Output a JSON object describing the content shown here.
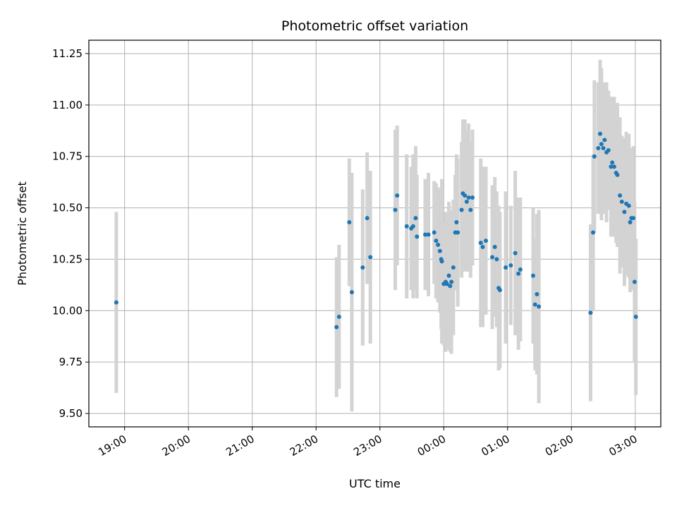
{
  "chart_data": {
    "type": "scatter",
    "title": "Photometric offset variation",
    "xlabel": "UTC time",
    "ylabel": "Photometric offset",
    "x_tick_labels": [
      "19:00",
      "20:00",
      "21:00",
      "22:00",
      "23:00",
      "00:00",
      "01:00",
      "02:00",
      "03:00"
    ],
    "x_tick_hours": [
      19,
      20,
      21,
      22,
      23,
      24,
      25,
      26,
      27
    ],
    "xlim_hours": [
      18.44,
      27.4
    ],
    "y_ticks": [
      9.5,
      9.75,
      10.0,
      10.25,
      10.5,
      10.75,
      11.0,
      11.25
    ],
    "y_tick_labels": [
      "9.50",
      "9.75",
      "10.00",
      "10.25",
      "10.50",
      "10.75",
      "11.00",
      "11.25"
    ],
    "ylim": [
      9.435,
      11.315
    ],
    "grid": true,
    "colors": {
      "point": "#1f77b4",
      "errorbar": "#d3d3d3",
      "grid": "#b0b0b0"
    },
    "series": [
      {
        "points": [
          [
            18.87,
            10.04,
            0.44
          ],
          [
            22.32,
            9.92,
            0.34
          ],
          [
            22.36,
            9.97,
            0.35
          ],
          [
            22.52,
            10.43,
            0.31
          ],
          [
            22.56,
            10.09,
            0.58
          ],
          [
            22.73,
            10.21,
            0.38
          ],
          [
            22.8,
            10.45,
            0.32
          ],
          [
            22.85,
            10.26,
            0.42
          ],
          [
            23.24,
            10.49,
            0.39
          ],
          [
            23.27,
            10.56,
            0.34
          ],
          [
            23.42,
            10.41,
            0.35
          ],
          [
            23.49,
            10.4,
            0.3
          ],
          [
            23.52,
            10.41,
            0.35
          ],
          [
            23.56,
            10.45,
            0.35
          ],
          [
            23.58,
            10.36,
            0.3
          ],
          [
            23.71,
            10.37,
            0.27
          ],
          [
            23.76,
            10.37,
            0.3
          ],
          [
            23.85,
            10.38,
            0.25
          ],
          [
            23.88,
            10.34,
            0.28
          ],
          [
            23.91,
            10.32,
            0.28
          ],
          [
            23.94,
            10.29,
            0.3
          ],
          [
            23.96,
            10.25,
            0.34
          ],
          [
            23.97,
            10.24,
            0.4
          ],
          [
            24.0,
            10.13,
            0.3
          ],
          [
            24.03,
            10.14,
            0.34
          ],
          [
            24.05,
            10.13,
            0.32
          ],
          [
            24.08,
            10.17,
            0.36
          ],
          [
            24.1,
            10.12,
            0.32
          ],
          [
            24.12,
            10.14,
            0.35
          ],
          [
            24.15,
            10.21,
            0.33
          ],
          [
            24.18,
            10.38,
            0.28
          ],
          [
            24.2,
            10.43,
            0.33
          ],
          [
            24.22,
            10.38,
            0.36
          ],
          [
            24.28,
            10.49,
            0.33
          ],
          [
            24.3,
            10.57,
            0.36
          ],
          [
            24.33,
            10.56,
            0.37
          ],
          [
            24.36,
            10.53,
            0.34
          ],
          [
            24.39,
            10.55,
            0.36
          ],
          [
            24.42,
            10.49,
            0.33
          ],
          [
            24.45,
            10.55,
            0.33
          ],
          [
            24.58,
            10.33,
            0.41
          ],
          [
            24.61,
            10.31,
            0.39
          ],
          [
            24.66,
            10.34,
            0.36
          ],
          [
            24.76,
            10.26,
            0.35
          ],
          [
            24.8,
            10.31,
            0.34
          ],
          [
            24.83,
            10.25,
            0.33
          ],
          [
            24.86,
            10.11,
            0.4
          ],
          [
            24.88,
            10.1,
            0.38
          ],
          [
            24.97,
            10.21,
            0.37
          ],
          [
            25.05,
            10.22,
            0.29
          ],
          [
            25.12,
            10.28,
            0.4
          ],
          [
            25.17,
            10.18,
            0.37
          ],
          [
            25.2,
            10.2,
            0.35
          ],
          [
            25.4,
            10.17,
            0.33
          ],
          [
            25.43,
            10.03,
            0.32
          ],
          [
            25.46,
            10.08,
            0.39
          ],
          [
            25.49,
            10.02,
            0.47
          ],
          [
            26.3,
            9.99,
            0.43
          ],
          [
            26.34,
            10.38,
            0.38
          ],
          [
            26.36,
            10.75,
            0.37
          ],
          [
            26.42,
            10.79,
            0.32
          ],
          [
            26.45,
            10.86,
            0.36
          ],
          [
            26.47,
            10.81,
            0.37
          ],
          [
            26.5,
            10.79,
            0.32
          ],
          [
            26.52,
            10.83,
            0.27
          ],
          [
            26.55,
            10.77,
            0.34
          ],
          [
            26.58,
            10.78,
            0.29
          ],
          [
            26.62,
            10.7,
            0.34
          ],
          [
            26.64,
            10.72,
            0.3
          ],
          [
            26.67,
            10.7,
            0.34
          ],
          [
            26.7,
            10.67,
            0.34
          ],
          [
            26.72,
            10.66,
            0.35
          ],
          [
            26.76,
            10.56,
            0.38
          ],
          [
            26.79,
            10.53,
            0.32
          ],
          [
            26.83,
            10.48,
            0.36
          ],
          [
            26.86,
            10.52,
            0.35
          ],
          [
            26.9,
            10.51,
            0.35
          ],
          [
            26.92,
            10.43,
            0.34
          ],
          [
            26.94,
            10.45,
            0.34
          ],
          [
            26.97,
            10.45,
            0.35
          ],
          [
            26.99,
            10.14,
            0.39
          ],
          [
            27.01,
            9.97,
            0.38
          ]
        ]
      }
    ]
  }
}
